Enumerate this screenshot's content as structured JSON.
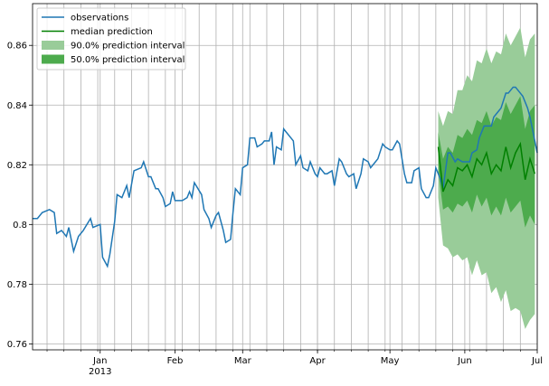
{
  "chart_data": {
    "type": "line",
    "xlim": [
      3,
      212
    ],
    "ylim": [
      0.758,
      0.874
    ],
    "yticks": [
      0.76,
      0.78,
      0.8,
      0.82,
      0.84,
      0.86
    ],
    "xticks": [
      {
        "value": 31,
        "label": "Jan",
        "sublabel": "2013"
      },
      {
        "value": 62,
        "label": "Feb"
      },
      {
        "value": 90,
        "label": "Mar"
      },
      {
        "value": 121,
        "label": "Apr"
      },
      {
        "value": 151,
        "label": "May"
      },
      {
        "value": 182,
        "label": "Jun"
      },
      {
        "value": 212,
        "label": "Jul"
      }
    ],
    "xminorticks": [
      9,
      16,
      23,
      30,
      37,
      44,
      51,
      58,
      65,
      72,
      79,
      86,
      93,
      100,
      107,
      114,
      121,
      128,
      135,
      142,
      149,
      156,
      163,
      170,
      177,
      184,
      191,
      198,
      205
    ],
    "grid": true,
    "legend": "upper left",
    "series": [
      {
        "name": "observations",
        "color": "#1f77b4",
        "x": [
          3,
          5,
          7,
          10,
          12,
          13,
          15,
          17,
          18,
          20,
          22,
          24,
          27,
          28,
          31,
          32,
          34,
          35,
          37,
          38,
          40,
          42,
          43,
          45,
          48,
          49,
          51,
          52,
          54,
          55,
          57,
          58,
          60,
          61,
          62,
          64,
          65,
          67,
          68,
          69,
          70,
          73,
          74,
          76,
          77,
          79,
          80,
          82,
          83,
          85,
          86,
          87,
          89,
          90,
          92,
          93,
          95,
          96,
          98,
          99,
          101,
          102,
          103,
          104,
          106,
          107,
          108,
          110,
          111,
          112,
          114,
          115,
          117,
          118,
          120,
          121,
          122,
          124,
          125,
          127,
          128,
          130,
          131,
          133,
          134,
          136,
          137,
          139,
          140,
          142,
          143,
          145,
          146,
          148,
          149,
          151,
          152,
          154,
          155,
          157,
          158,
          160,
          161,
          163,
          164,
          166,
          167,
          169,
          170,
          172,
          173,
          175,
          176,
          178,
          179,
          181,
          182,
          184,
          185,
          187,
          188,
          190,
          191,
          193,
          194,
          196,
          197,
          199,
          200,
          202,
          203,
          205,
          206,
          208,
          209,
          212
        ],
        "values": [
          0.802,
          0.802,
          0.804,
          0.805,
          0.804,
          0.797,
          0.798,
          0.796,
          0.799,
          0.791,
          0.796,
          0.798,
          0.802,
          0.799,
          0.8,
          0.789,
          0.786,
          0.79,
          0.801,
          0.81,
          0.809,
          0.813,
          0.809,
          0.818,
          0.819,
          0.821,
          0.816,
          0.816,
          0.812,
          0.812,
          0.809,
          0.806,
          0.807,
          0.811,
          0.808,
          0.808,
          0.808,
          0.809,
          0.811,
          0.809,
          0.814,
          0.81,
          0.805,
          0.802,
          0.799,
          0.803,
          0.804,
          0.798,
          0.794,
          0.795,
          0.804,
          0.812,
          0.81,
          0.819,
          0.82,
          0.829,
          0.829,
          0.826,
          0.827,
          0.828,
          0.828,
          0.831,
          0.82,
          0.826,
          0.825,
          0.832,
          0.831,
          0.829,
          0.828,
          0.82,
          0.823,
          0.819,
          0.818,
          0.821,
          0.817,
          0.816,
          0.819,
          0.817,
          0.817,
          0.818,
          0.813,
          0.822,
          0.821,
          0.817,
          0.816,
          0.817,
          0.812,
          0.817,
          0.822,
          0.821,
          0.819,
          0.821,
          0.822,
          0.827,
          0.826,
          0.825,
          0.825,
          0.828,
          0.827,
          0.817,
          0.814,
          0.814,
          0.818,
          0.819,
          0.812,
          0.809,
          0.809,
          0.813,
          0.819,
          0.815,
          0.812,
          0.824,
          0.824,
          0.821,
          0.822,
          0.821,
          0.821,
          0.821,
          0.824,
          0.825,
          0.829,
          0.833,
          0.833,
          0.833,
          0.836,
          0.838,
          0.839,
          0.844,
          0.844,
          0.846,
          0.846,
          0.844,
          0.843,
          0.839,
          0.836,
          0.824
        ]
      },
      {
        "name": "median prediction",
        "color": "#008000",
        "x": [
          171,
          173,
          175,
          177,
          179,
          181,
          183,
          185,
          187,
          189,
          191,
          193,
          195,
          197,
          199,
          201,
          203,
          205,
          207,
          209,
          211
        ],
        "values": [
          0.826,
          0.811,
          0.815,
          0.813,
          0.819,
          0.818,
          0.82,
          0.816,
          0.822,
          0.82,
          0.824,
          0.817,
          0.82,
          0.818,
          0.826,
          0.819,
          0.824,
          0.827,
          0.815,
          0.822,
          0.817
        ]
      }
    ],
    "intervals": [
      {
        "name": "90.0% prediction interval",
        "color": "#99cc99",
        "x": [
          171,
          173,
          175,
          177,
          179,
          181,
          183,
          185,
          187,
          189,
          191,
          193,
          195,
          197,
          199,
          201,
          203,
          205,
          207,
          209,
          211
        ],
        "lower": [
          0.809,
          0.793,
          0.792,
          0.789,
          0.79,
          0.788,
          0.789,
          0.783,
          0.788,
          0.783,
          0.784,
          0.777,
          0.779,
          0.774,
          0.778,
          0.771,
          0.772,
          0.771,
          0.765,
          0.768,
          0.77
        ],
        "upper": [
          0.838,
          0.833,
          0.838,
          0.837,
          0.845,
          0.845,
          0.85,
          0.848,
          0.855,
          0.854,
          0.859,
          0.854,
          0.858,
          0.857,
          0.864,
          0.86,
          0.863,
          0.866,
          0.856,
          0.862,
          0.864
        ]
      },
      {
        "name": "50.0% prediction interval",
        "color": "#4dab4d",
        "x": [
          171,
          173,
          175,
          177,
          179,
          181,
          183,
          185,
          187,
          189,
          191,
          193,
          195,
          197,
          199,
          201,
          203,
          205,
          207,
          209,
          211
        ],
        "lower": [
          0.818,
          0.805,
          0.806,
          0.804,
          0.807,
          0.806,
          0.808,
          0.804,
          0.81,
          0.806,
          0.809,
          0.803,
          0.806,
          0.803,
          0.809,
          0.804,
          0.806,
          0.808,
          0.799,
          0.803,
          0.8
        ],
        "upper": [
          0.831,
          0.822,
          0.826,
          0.824,
          0.83,
          0.829,
          0.832,
          0.83,
          0.835,
          0.834,
          0.838,
          0.833,
          0.836,
          0.835,
          0.841,
          0.837,
          0.84,
          0.843,
          0.832,
          0.838,
          0.84
        ]
      }
    ]
  }
}
